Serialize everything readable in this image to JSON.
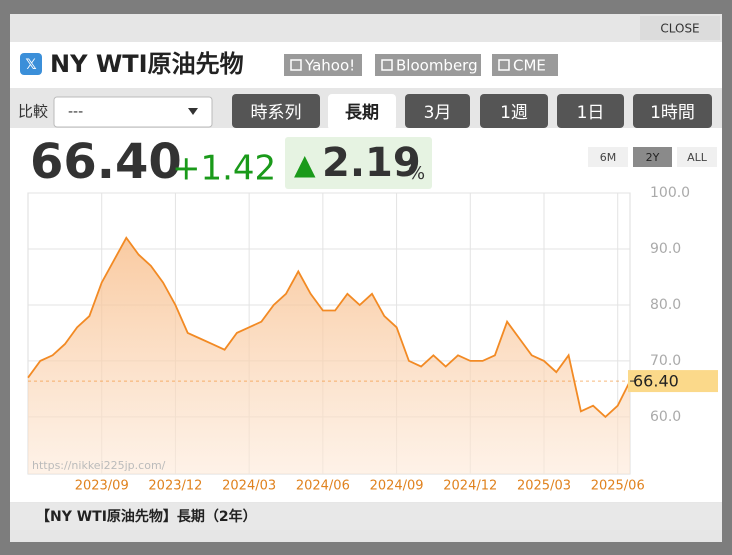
{
  "header": {
    "title": "NY WTI原油先物",
    "links": [
      "Yahoo!",
      "Bloomberg",
      "CME"
    ],
    "close": "CLOSE"
  },
  "compare": {
    "label": "比較",
    "value": "---"
  },
  "tabs": [
    "時系列",
    "長期",
    "3月",
    "1週",
    "1日",
    "1時間"
  ],
  "active_tab": 1,
  "quote": {
    "price": "66.40",
    "change": "+1.42",
    "arrow": "▲",
    "change_pct": "2.19",
    "pct_unit": "%"
  },
  "ranges": [
    "6M",
    "2Y",
    "ALL"
  ],
  "active_range": 1,
  "chart_data": {
    "type": "area",
    "categories": [
      null,
      null,
      null,
      null,
      null,
      null,
      "2023/09",
      null,
      null,
      null,
      null,
      null,
      "2023/12",
      null,
      null,
      null,
      null,
      null,
      "2024/03",
      null,
      null,
      null,
      null,
      null,
      "2024/06",
      null,
      null,
      null,
      null,
      null,
      "2024/09",
      null,
      null,
      null,
      null,
      null,
      "2024/12",
      null,
      null,
      null,
      null,
      null,
      "2025/03",
      null,
      null,
      null,
      null,
      null,
      "2025/06",
      null
    ],
    "series": [
      {
        "name": "NY WTI原油先物",
        "color": "#f28a24",
        "values": [
          67,
          70,
          71,
          73,
          76,
          78,
          84,
          88,
          92,
          89,
          87,
          84,
          80,
          75,
          74,
          73,
          72,
          75,
          76,
          77,
          80,
          82,
          86,
          82,
          79,
          79,
          82,
          80,
          82,
          78,
          76,
          70,
          69,
          71,
          69,
          71,
          70,
          70,
          71,
          77,
          74,
          71,
          70,
          68,
          71,
          61,
          62,
          60,
          62,
          66.4
        ]
      }
    ],
    "ylim": [
      49.8,
      100
    ],
    "yticks": [
      {
        "value": 60,
        "label": "60.0"
      },
      {
        "value": 70,
        "label": "70.0"
      },
      {
        "value": 80,
        "label": "80.0"
      },
      {
        "value": 90,
        "label": "90.0"
      },
      {
        "value": 100,
        "label": "100.0"
      }
    ],
    "grid": true,
    "watermark": "https://nikkei225jp.com/"
  },
  "footer": "【NY WTI原油先物】長期（2年）"
}
